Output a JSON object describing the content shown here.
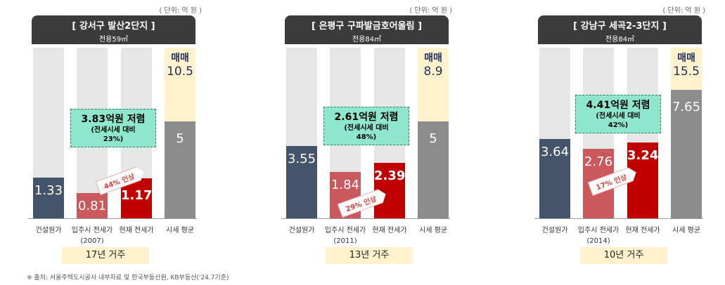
{
  "unit": "( 단위: 억 원 )",
  "source": "※ 출처: 서울주택도시공사 내부자료 및 한국부동산원, KB부동산('24.7기준)",
  "colors": {
    "construction": "#44546a",
    "initial_jeonse": "#c9595c",
    "current_jeonse": "#c00000",
    "market_avg": "#8c8c8c",
    "sale": "#fff2cc",
    "callout": "#8ee6cc",
    "header": "#3b3b3b"
  },
  "chart_data": [
    {
      "type": "bar",
      "title": "[ 강서구 발산2단지 ]",
      "subtitle": "전용59㎡",
      "categories": [
        "건설원가",
        "입주시 전세가",
        "현재 전세가",
        "시세 평균"
      ],
      "category_sub": [
        "",
        "(2007)",
        "",
        ""
      ],
      "values": [
        1.33,
        0.81,
        1.17,
        5
      ],
      "sale_label": "매매",
      "sale_value": "10.5",
      "callout": {
        "main": "3.83억원 저렴",
        "sub1": "(전세시세 대비",
        "sub2": "23%)"
      },
      "increase": "44% 인상",
      "years": "17년 거주"
    },
    {
      "type": "bar",
      "title": "[ 은평구 구파발금호어울림 ]",
      "subtitle": "전용84㎡",
      "categories": [
        "건설원가",
        "입주시 전세가",
        "현재 전세가",
        "시세 평균"
      ],
      "category_sub": [
        "",
        "(2011)",
        "",
        ""
      ],
      "values": [
        3.55,
        1.84,
        2.39,
        5
      ],
      "sale_label": "매매",
      "sale_value": "8.9",
      "callout": {
        "main": "2.61억원 저렴",
        "sub1": "(전세시세 대비",
        "sub2": "48%)"
      },
      "increase": "29% 인상",
      "years": "13년 거주"
    },
    {
      "type": "bar",
      "title": "[ 강남구 세곡2-3단지 ]",
      "subtitle": "전용84㎡",
      "categories": [
        "건설원가",
        "입주시 전세가",
        "현재 전세가",
        "시세 평균"
      ],
      "category_sub": [
        "",
        "(2014)",
        "",
        ""
      ],
      "values": [
        3.64,
        2.76,
        3.24,
        7.65
      ],
      "sale_label": "매매",
      "sale_value": "15.5",
      "callout": {
        "main": "4.41억원 저렴",
        "sub1": "(전세시세 대비",
        "sub2": "42%)"
      },
      "increase": "17% 인상",
      "years": "10년 거주"
    }
  ]
}
